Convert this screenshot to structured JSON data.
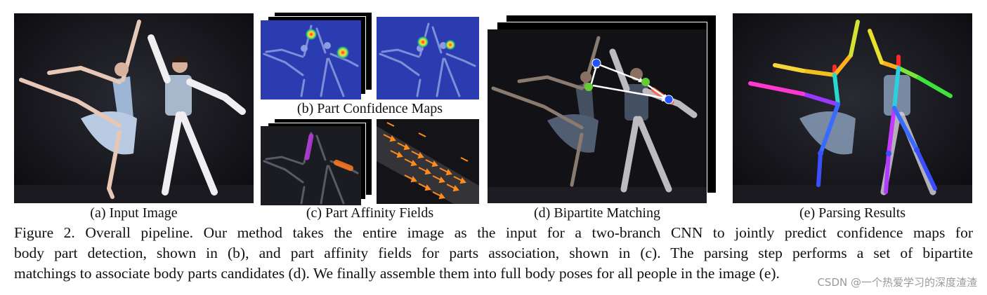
{
  "panels": {
    "a": {
      "caption": "(a) Input Image"
    },
    "b": {
      "caption": "(b) Part Confidence Maps"
    },
    "c": {
      "caption": "(c) Part Affinity Fields"
    },
    "d": {
      "caption": "(d) Bipartite Matching"
    },
    "e": {
      "caption": "(e) Parsing Results"
    }
  },
  "figure": {
    "label": "Figure 2.",
    "line1": "Figure 2. Overall pipeline.  Our method takes the entire image as the input for a two-branch CNN to jointly predict confidence maps for",
    "line2": "body part detection, shown in (b), and part affinity fields for parts association, shown in (c).  The parsing step performs a set of bipartite",
    "line3": "matchings to associate body parts candidates (d). We finally assemble them into full body poses for all people in the image (e)."
  },
  "watermark": "CSDN @一个热爱学习的深度渣渣",
  "colors": {
    "stage_dark": "#1b1b22",
    "heatmap_blue": "#2b3bb0",
    "paf_arrow": "#ff8c1a",
    "match_blue": "#2255ff",
    "match_green": "#66cc33"
  }
}
